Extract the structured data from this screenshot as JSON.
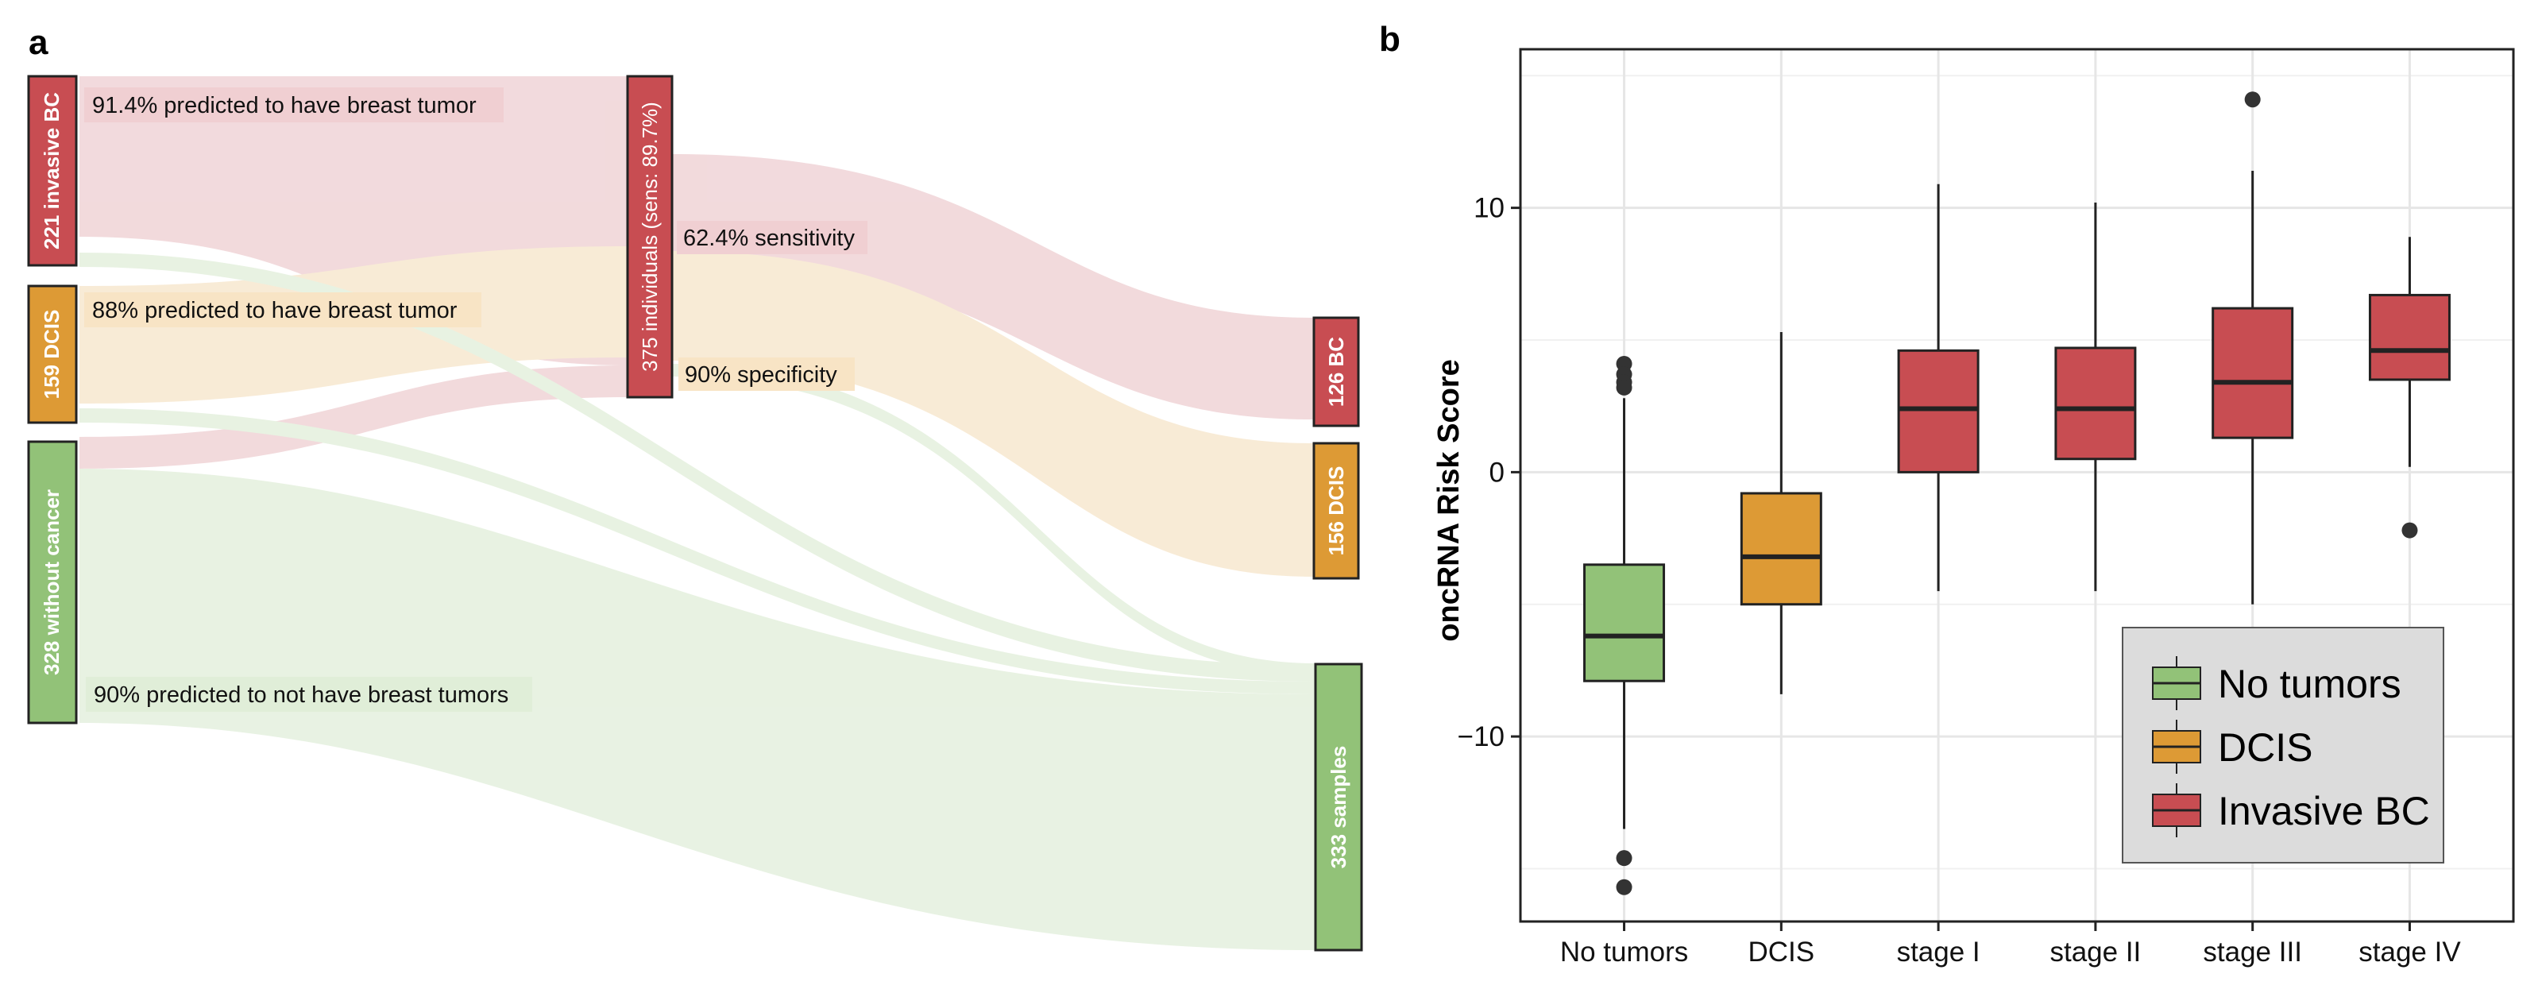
{
  "panels": {
    "a": "a",
    "b": "b"
  },
  "colors": {
    "invasive": "#c84d52",
    "dcis": "#dd9a35",
    "none": "#92c278",
    "flow_invasive": "#e8bcc1",
    "flow_dcis": "#f4dcb6",
    "flow_none": "#d6e8cc",
    "label_invasive": "#f0cfd2",
    "label_dcis": "#f8e4c5",
    "label_none": "#e0eed8",
    "legend_bg": "#dcdcdc",
    "grid": "#e6e6e6"
  },
  "sankey": {
    "nodes": {
      "invasive": "221 invasive BC",
      "dcis": "159 DCIS",
      "no_cancer": "328 without cancer",
      "individuals": "375 individuals (sens: 89.7%)",
      "bc": "126 BC",
      "dcis_out": "156 DCIS",
      "samples": "333 samples"
    },
    "labels": {
      "invasive_pred": "91.4% predicted to have breast tumor",
      "dcis_pred": "88% predicted to have breast tumor",
      "none_pred": "90% predicted to not have breast tumors",
      "sensitivity": "62.4% sensitivity",
      "specificity": "90% specificity"
    }
  },
  "chart_data": {
    "type": "boxplot",
    "ylabel": "oncRNA Risk Score",
    "xlabel": "",
    "ylim": [
      -17,
      16
    ],
    "yticks": [
      -10,
      0,
      10
    ],
    "ytick_labels": [
      "−10",
      "0",
      "10"
    ],
    "categories": [
      "No tumors",
      "DCIS",
      "stage I",
      "stage II",
      "stage III",
      "stage IV"
    ],
    "groups": [
      "No tumors",
      "DCIS",
      "Invasive BC",
      "Invasive BC",
      "Invasive BC",
      "Invasive BC"
    ],
    "boxes": [
      {
        "q1": -7.9,
        "median": -6.2,
        "q3": -3.5,
        "whisker_low": -13.5,
        "whisker_high": 2.8,
        "outliers": [
          4.1,
          3.7,
          3.4,
          3.2,
          -14.6,
          -15.7
        ]
      },
      {
        "q1": -5.0,
        "median": -3.2,
        "q3": -0.8,
        "whisker_low": -8.4,
        "whisker_high": 5.3,
        "outliers": []
      },
      {
        "q1": 0.0,
        "median": 2.4,
        "q3": 4.6,
        "whisker_low": -4.5,
        "whisker_high": 10.9,
        "outliers": []
      },
      {
        "q1": 0.5,
        "median": 2.4,
        "q3": 4.7,
        "whisker_low": -4.5,
        "whisker_high": 10.2,
        "outliers": []
      },
      {
        "q1": 1.3,
        "median": 3.4,
        "q3": 6.2,
        "whisker_low": -5.0,
        "whisker_high": 11.4,
        "outliers": [
          14.1
        ]
      },
      {
        "q1": 3.5,
        "median": 4.6,
        "q3": 6.7,
        "whisker_low": 0.2,
        "whisker_high": 8.9,
        "outliers": [
          -2.2
        ]
      }
    ],
    "legend": [
      {
        "label": "No tumors",
        "color": "#92c278"
      },
      {
        "label": "DCIS",
        "color": "#dd9a35"
      },
      {
        "label": "Invasive BC",
        "color": "#c84d52"
      }
    ],
    "legend_position": "bottom-right",
    "grid": true
  }
}
